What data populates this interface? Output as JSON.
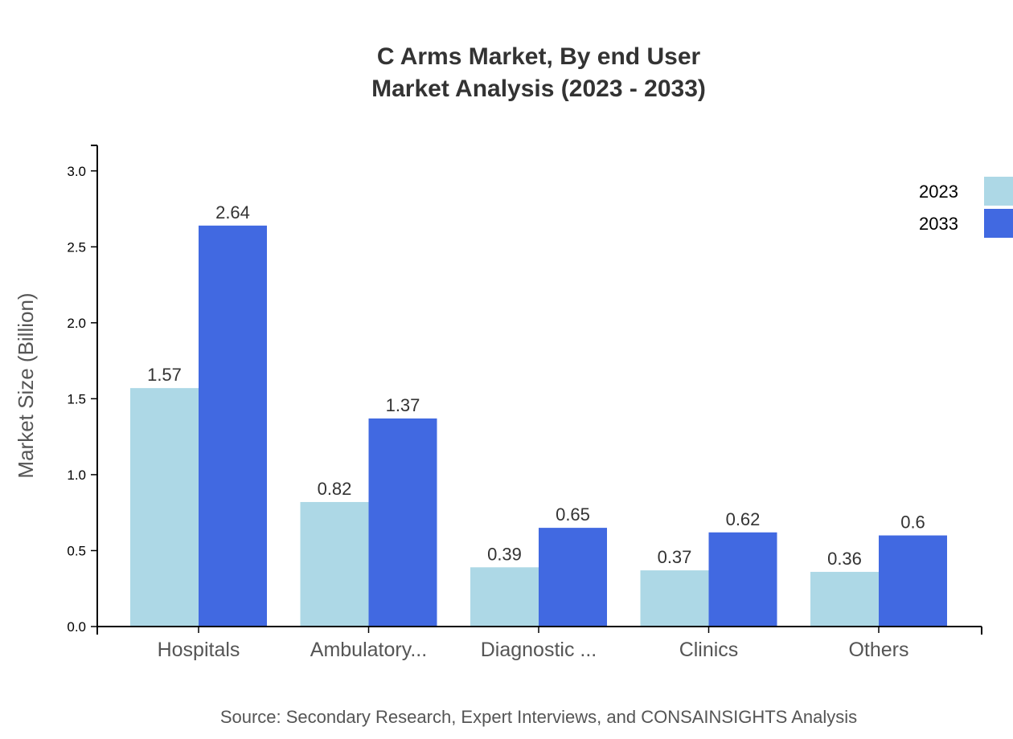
{
  "chart_data": {
    "type": "bar",
    "title": "C Arms Market, By end User",
    "subtitle": "Market Analysis (2023 - 2033)",
    "xlabel": "",
    "ylabel": "Market Size (Billion)",
    "ylim": [
      0,
      3.168
    ],
    "yticks": [
      "0.0",
      "0.5",
      "1.0",
      "1.5",
      "2.0",
      "2.5",
      "3.0"
    ],
    "categories": [
      "Hospitals",
      "Ambulatory...",
      "Diagnostic ...",
      "Clinics",
      "Others"
    ],
    "series": [
      {
        "name": "2023",
        "color": "#ADD8E6",
        "values": [
          1.57,
          0.82,
          0.39,
          0.37,
          0.36
        ]
      },
      {
        "name": "2033",
        "color": "#4169E1",
        "values": [
          2.64,
          1.37,
          0.65,
          0.62,
          0.6
        ]
      }
    ],
    "grid": false,
    "legend_position": "top-right",
    "source": "Source: Secondary Research, Expert Interviews, and CONSAINSIGHTS Analysis"
  }
}
